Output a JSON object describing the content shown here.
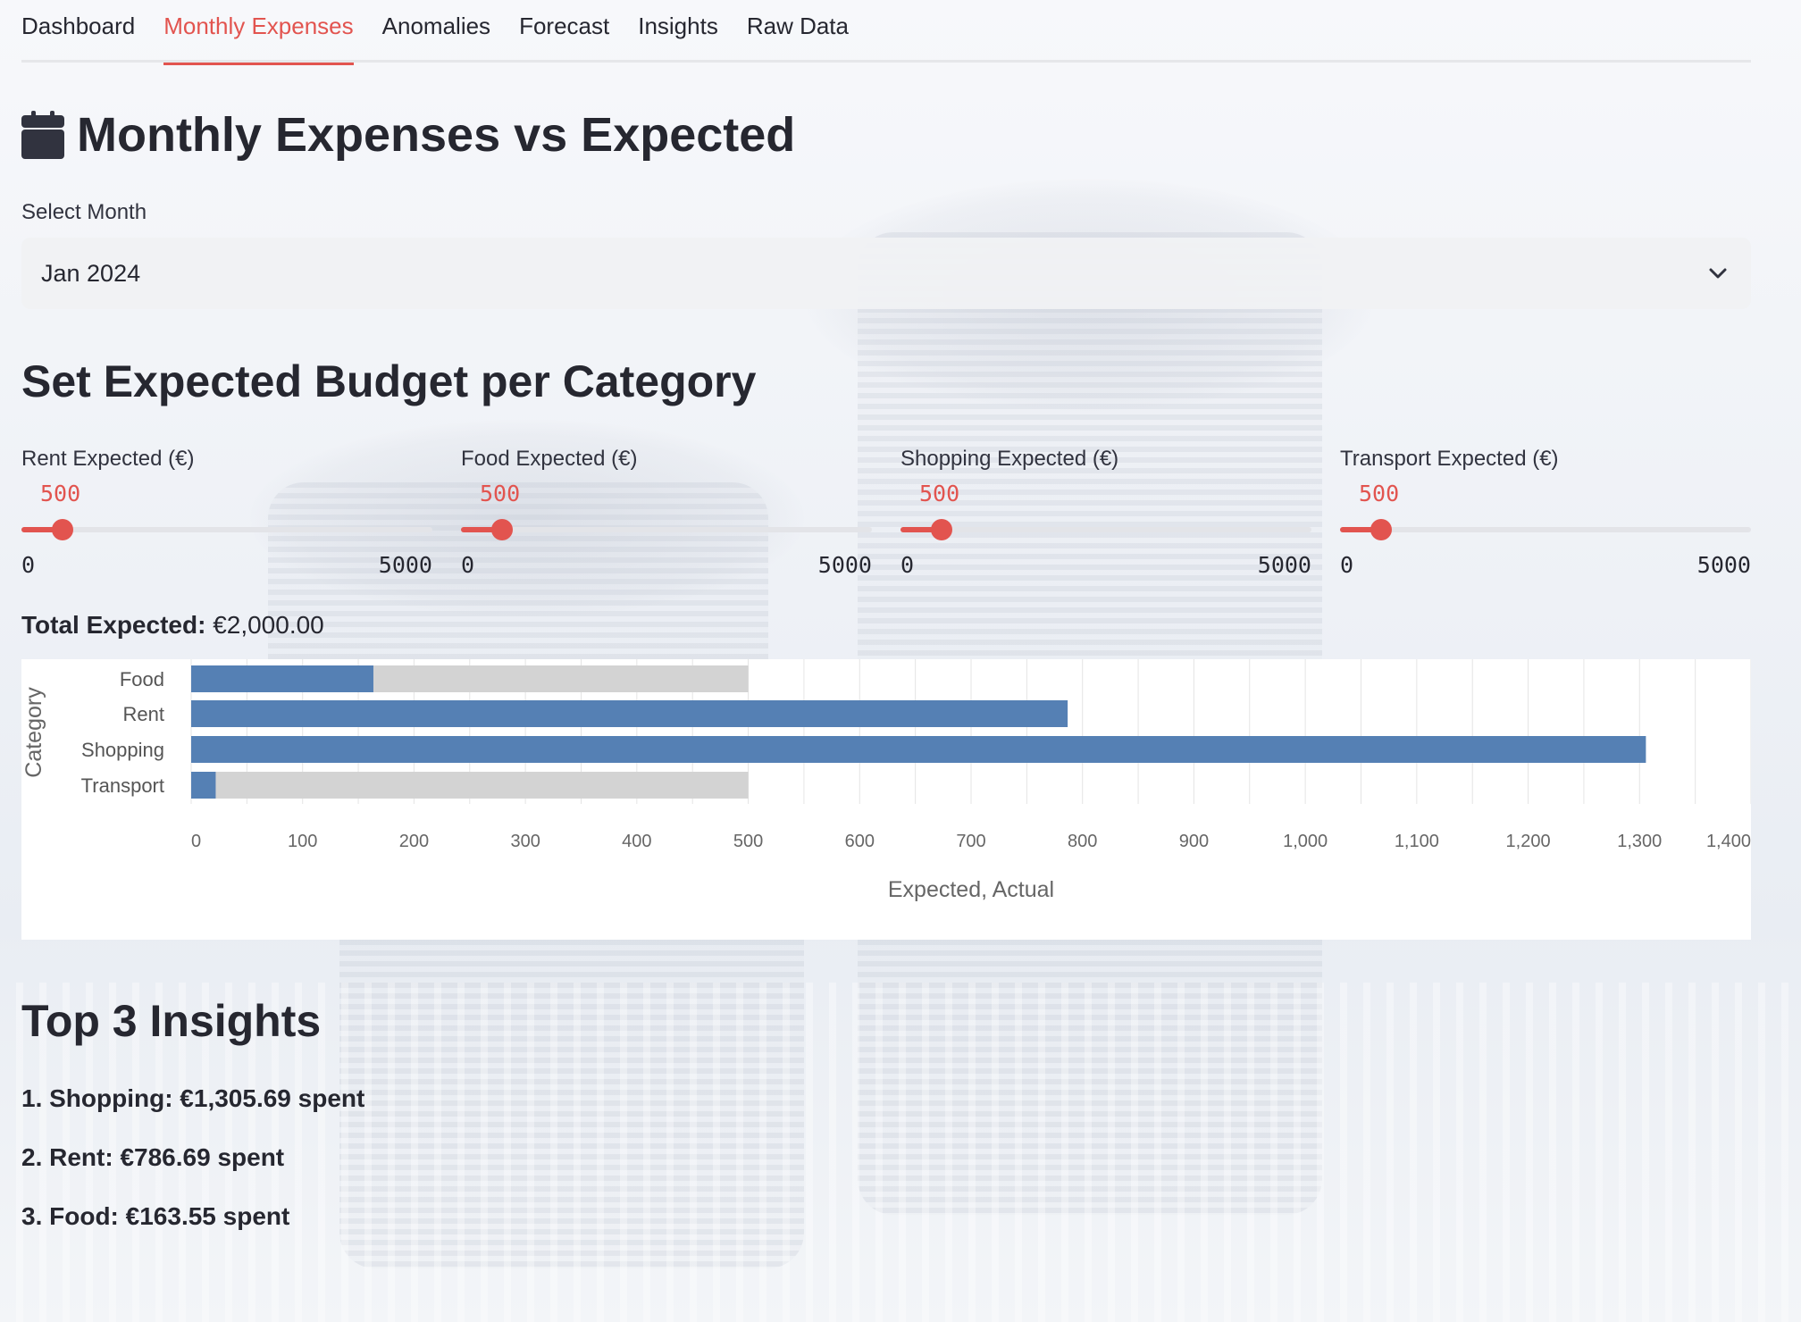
{
  "tabs": [
    {
      "label": "Dashboard",
      "active": false
    },
    {
      "label": "Monthly Expenses",
      "active": true
    },
    {
      "label": "Anomalies",
      "active": false
    },
    {
      "label": "Forecast",
      "active": false
    },
    {
      "label": "Insights",
      "active": false
    },
    {
      "label": "Raw Data",
      "active": false
    }
  ],
  "header": {
    "title": "Monthly Expenses vs Expected",
    "icon": "calendar-icon"
  },
  "month_select": {
    "label": "Select Month",
    "value": "Jan 2024",
    "icon": "chevron-down-icon"
  },
  "budget": {
    "title": "Set Expected Budget per Category",
    "sliders": [
      {
        "label": "Rent Expected (€)",
        "value": 500,
        "min": 0,
        "max": 5000
      },
      {
        "label": "Food Expected (€)",
        "value": 500,
        "min": 0,
        "max": 5000
      },
      {
        "label": "Shopping Expected (€)",
        "value": 500,
        "min": 0,
        "max": 5000
      },
      {
        "label": "Transport Expected (€)",
        "value": 500,
        "min": 0,
        "max": 5000
      }
    ],
    "total_label": "Total Expected:",
    "total_value": "€2,000.00"
  },
  "chart_data": {
    "type": "bar",
    "orientation": "horizontal",
    "categories": [
      "Food",
      "Rent",
      "Shopping",
      "Transport"
    ],
    "series": [
      {
        "name": "Expected",
        "values": [
          500,
          500,
          500,
          500
        ],
        "color": "#d3d3d3"
      },
      {
        "name": "Actual",
        "values": [
          163.55,
          786.69,
          1305.69,
          22
        ],
        "color": "#5580b4"
      }
    ],
    "xlabel": "Expected, Actual",
    "ylabel": "Category",
    "xlim": [
      0,
      1400
    ],
    "xticks": [
      0,
      100,
      200,
      300,
      400,
      500,
      600,
      700,
      800,
      900,
      1000,
      1100,
      1200,
      1300,
      1400
    ],
    "xtick_labels": [
      "0",
      "100",
      "200",
      "300",
      "400",
      "500",
      "600",
      "700",
      "800",
      "900",
      "1,000",
      "1,100",
      "1,200",
      "1,300",
      "1,400"
    ],
    "grid": true
  },
  "insights": {
    "title": "Top 3 Insights",
    "items": [
      "1. Shopping: €1,305.69 spent",
      "2. Rent: €786.69 spent",
      "3. Food: €163.55 spent"
    ]
  },
  "colors": {
    "accent": "#e2544f",
    "text": "#262730",
    "bar_actual": "#5580b4",
    "bar_expected": "#d3d3d3"
  }
}
